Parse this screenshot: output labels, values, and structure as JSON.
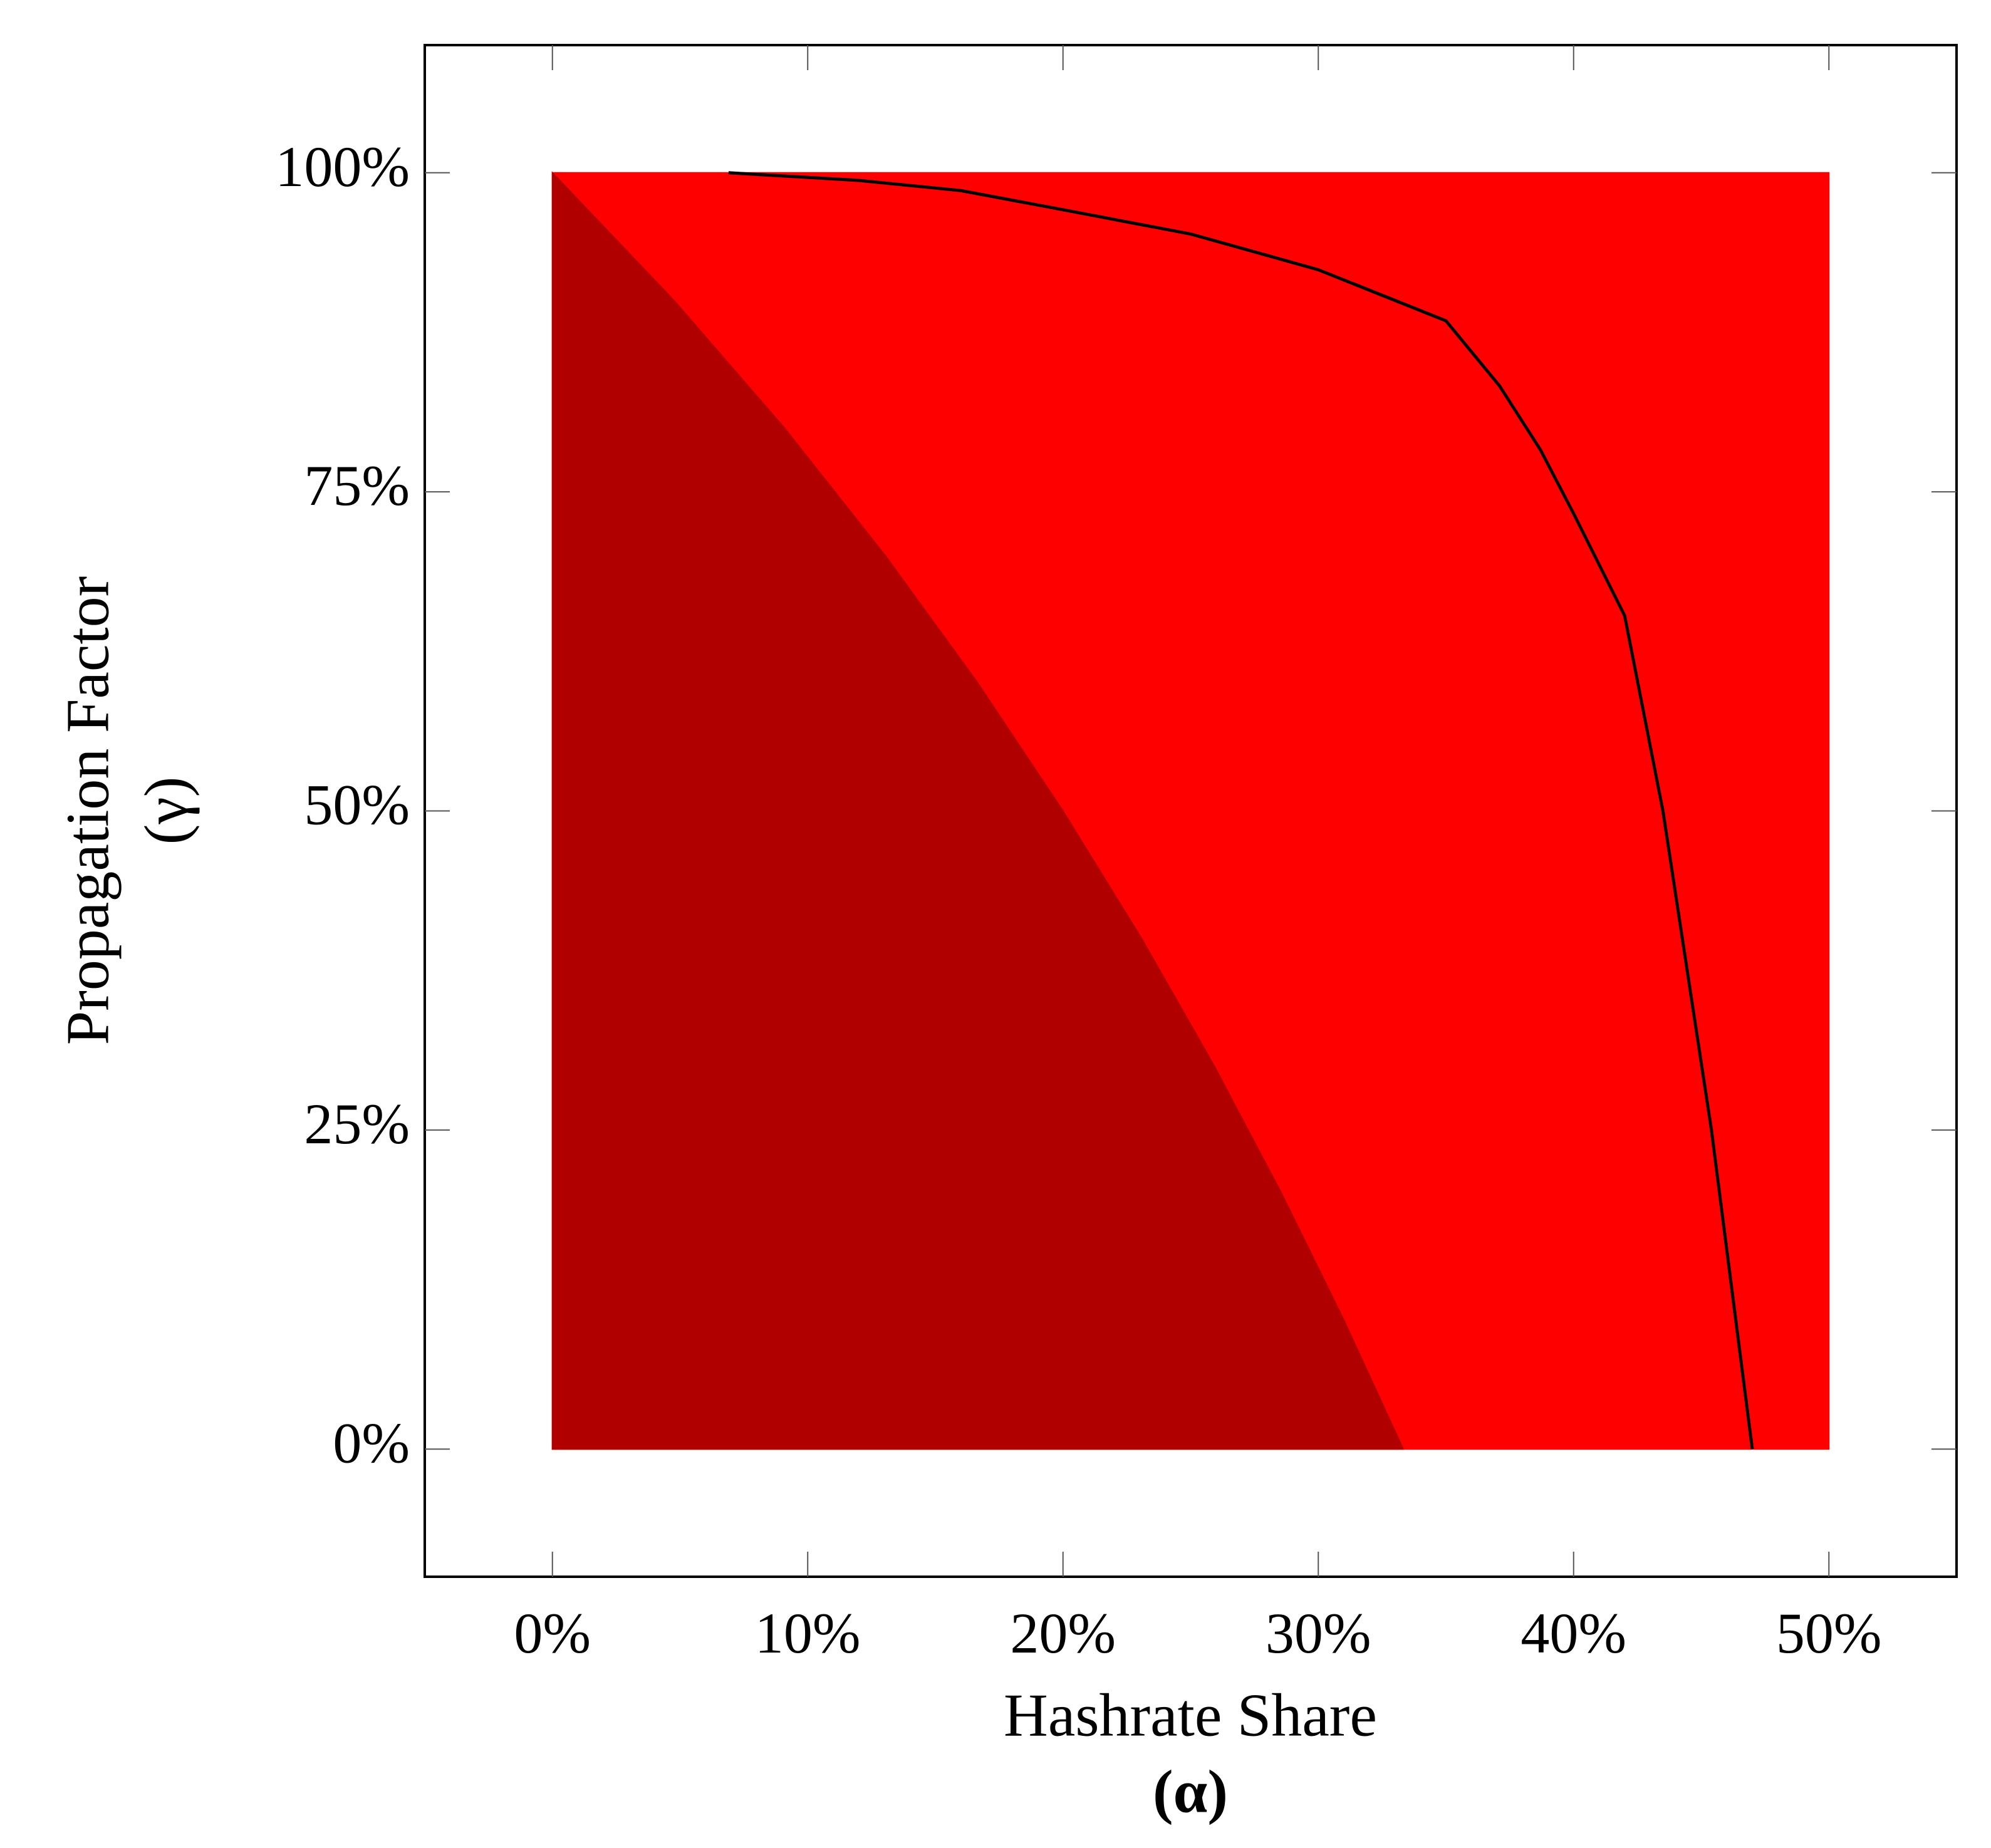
{
  "chart_data": {
    "type": "line",
    "xlabel": "Hashrate Share",
    "xlabel_symbol": "(α)",
    "ylabel": "Propagation Factor",
    "ylabel_symbol": "(γ)",
    "xlim": [
      -5,
      55
    ],
    "ylim": [
      -10,
      110
    ],
    "xticks": [
      {
        "value": 0,
        "label": "0%"
      },
      {
        "value": 10,
        "label": "10%"
      },
      {
        "value": 20,
        "label": "20%"
      },
      {
        "value": 30,
        "label": "30%"
      },
      {
        "value": 40,
        "label": "40%"
      },
      {
        "value": 50,
        "label": "50%"
      }
    ],
    "yticks": [
      {
        "value": 0,
        "label": "0%"
      },
      {
        "value": 25,
        "label": "25%"
      },
      {
        "value": 50,
        "label": "50%"
      },
      {
        "value": 75,
        "label": "75%"
      },
      {
        "value": 100,
        "label": "100%"
      }
    ],
    "series": [
      {
        "color": "#ff0000",
        "fill": true,
        "x": [
          0,
          50
        ],
        "values": [
          100,
          100
        ]
      },
      {
        "color": "#b00000",
        "fill": true,
        "x": [
          0,
          4.76,
          9.09,
          13.04,
          16.67,
          20,
          23.08,
          25.93,
          28.57,
          31.03,
          33.33
        ],
        "values": [
          100,
          90,
          80,
          70,
          60,
          50,
          40,
          30,
          20,
          10,
          0
        ]
      },
      {
        "color": "#000000",
        "fill": false,
        "x": [
          6.9,
          12,
          16,
          20,
          25,
          30,
          33,
          35,
          37.1,
          38.7,
          40,
          42,
          43.5,
          45.4,
          47
        ],
        "values": [
          100,
          99.4,
          98.6,
          97.1,
          95.2,
          92.4,
          90,
          88.4,
          83.3,
          78.3,
          73.3,
          65.3,
          50,
          25,
          0
        ]
      }
    ]
  }
}
